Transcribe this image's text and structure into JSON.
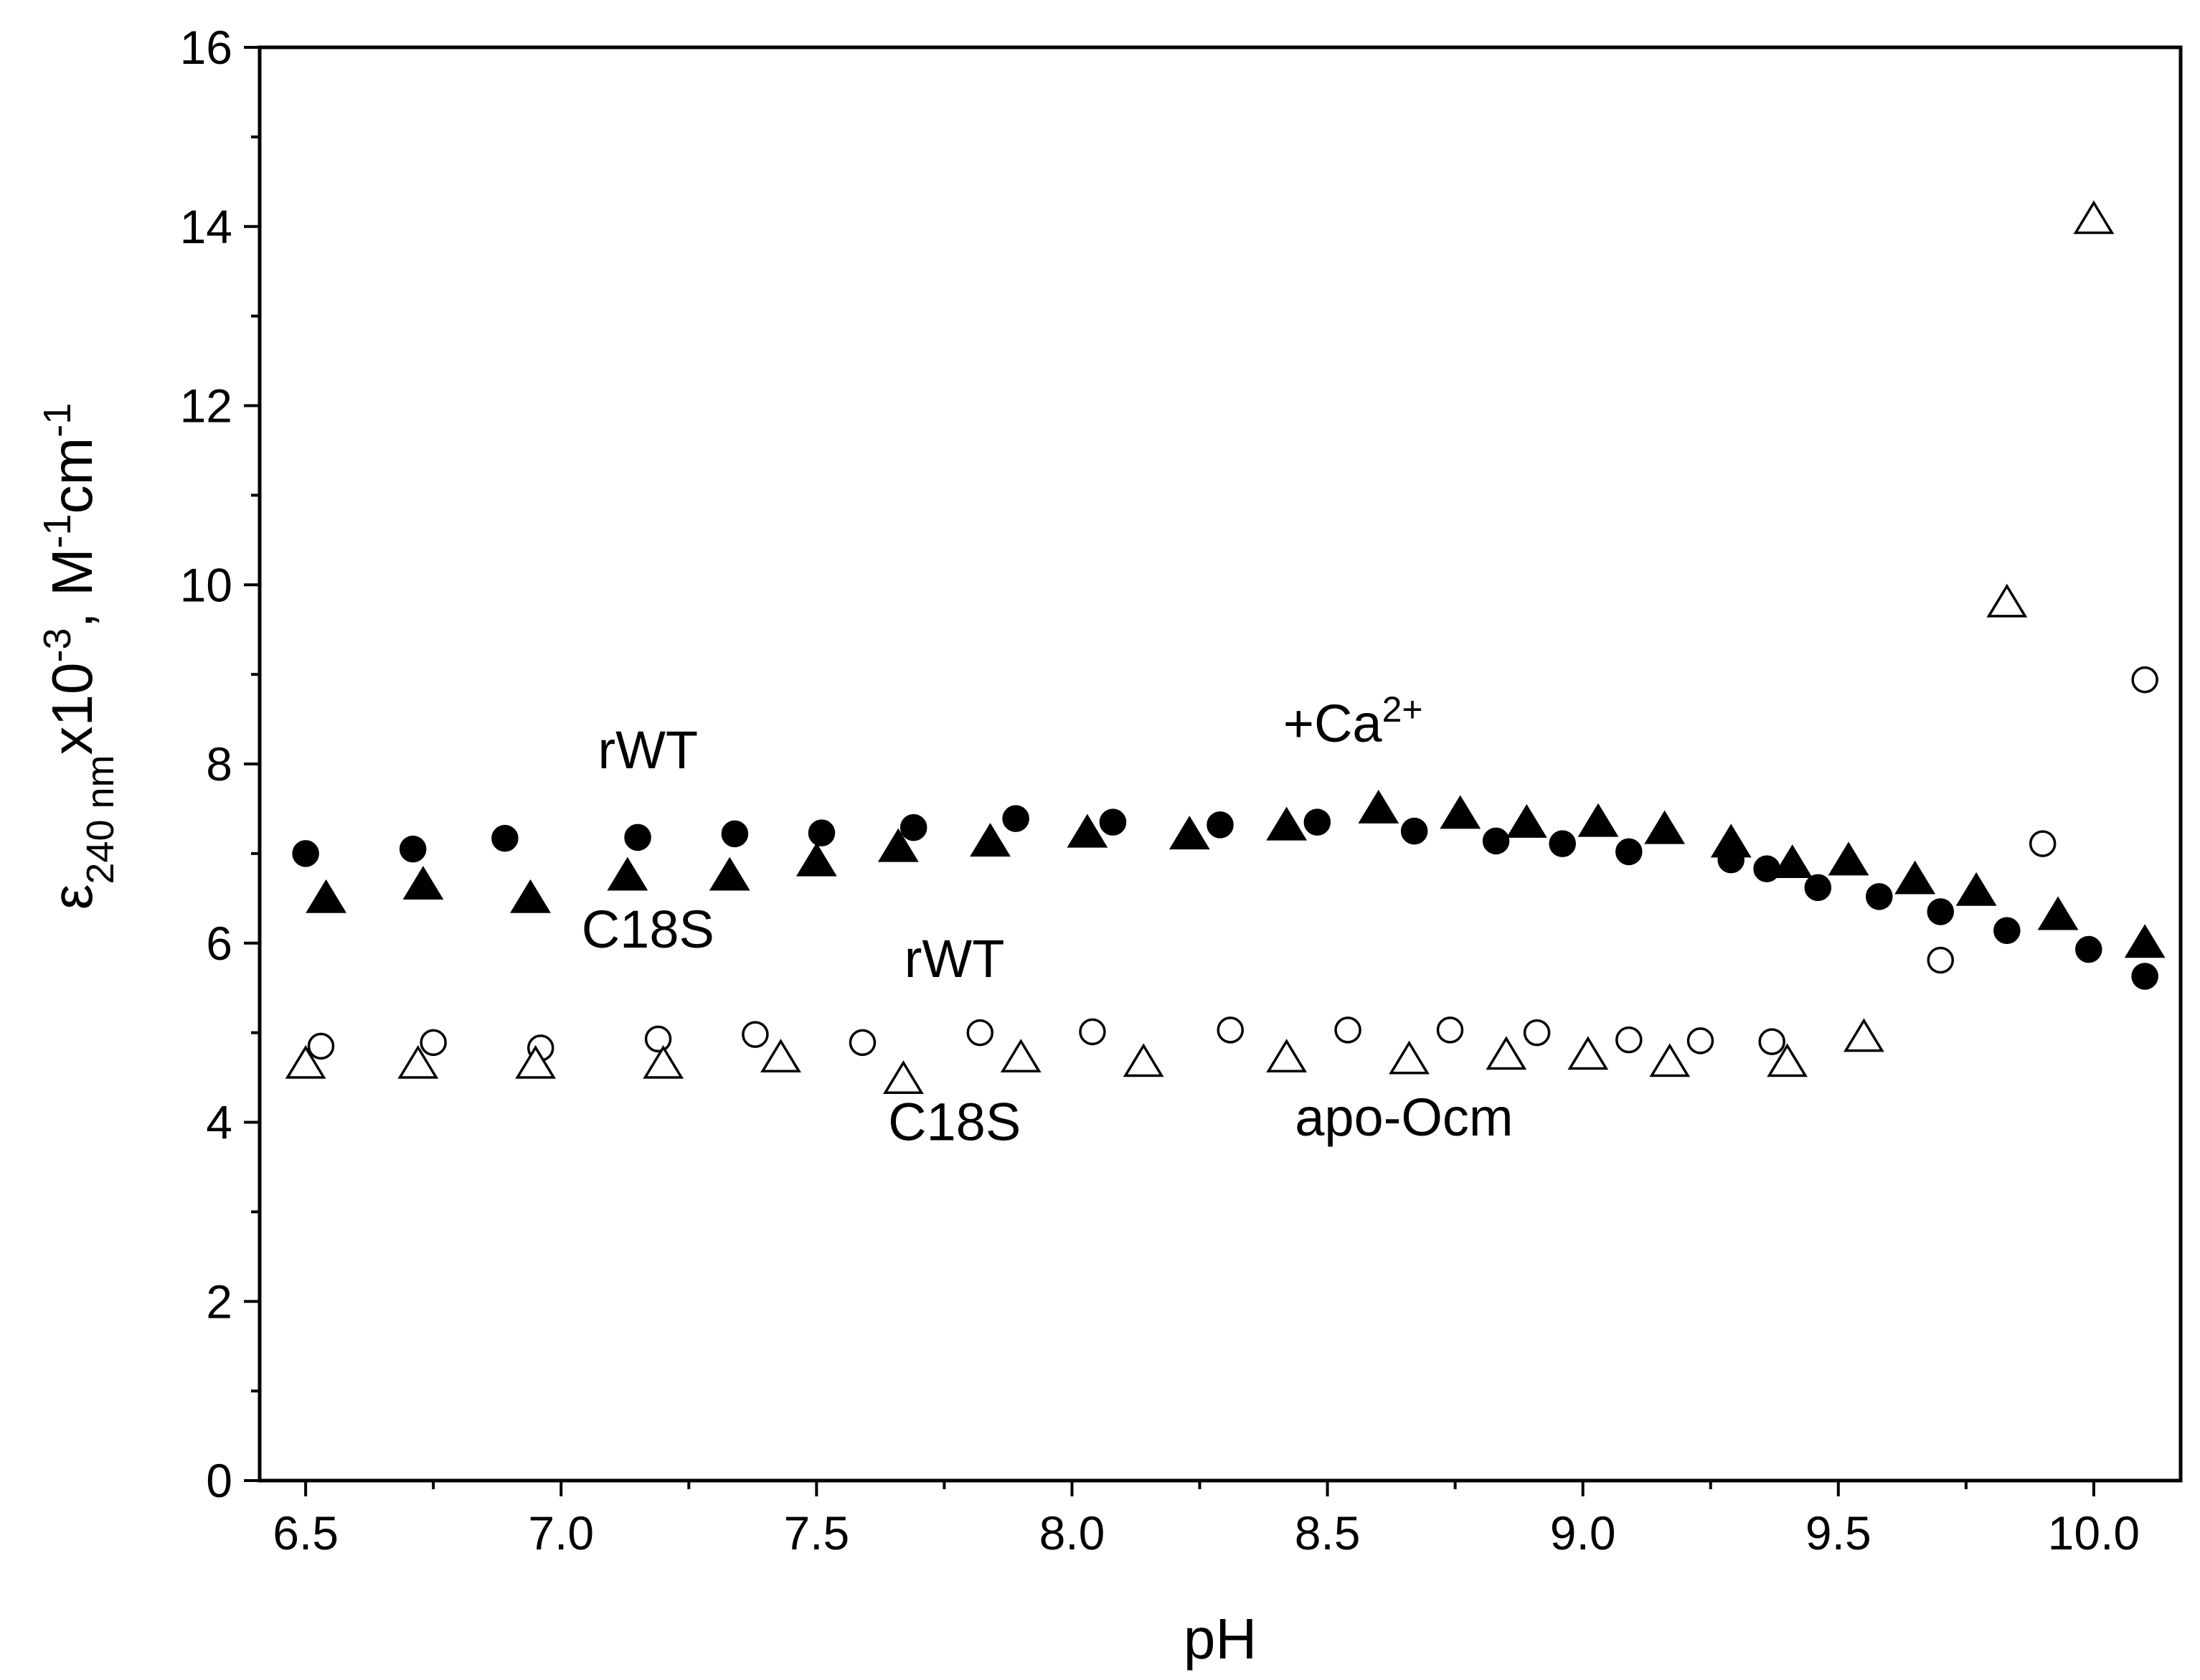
{
  "chart_data": {
    "type": "scatter",
    "xlabel": "pH",
    "ylabel": {
      "main": "ε",
      "subscript": "240 nm",
      "rest": "x10",
      "exp": "-3",
      "sep": ", M",
      "exp2": "-1",
      "unit2": "cm",
      "exp3": "-1"
    },
    "xlim": [
      6.41,
      10.17
    ],
    "ylim": [
      0,
      16
    ],
    "x_ticks": [
      "6.5",
      "7.0",
      "7.5",
      "8.0",
      "8.5",
      "9.0",
      "9.5",
      "10.0"
    ],
    "x_tick_values": [
      6.5,
      7.0,
      7.5,
      8.0,
      8.5,
      9.0,
      9.5,
      10.0
    ],
    "y_ticks": [
      "0",
      "2",
      "4",
      "6",
      "8",
      "10",
      "12",
      "14",
      "16"
    ],
    "y_tick_values": [
      0,
      2,
      4,
      6,
      8,
      10,
      12,
      14,
      16
    ],
    "grid": false,
    "series": [
      {
        "marker": "filled-circle",
        "color": "#000000",
        "points": [
          [
            6.5,
            7.0
          ],
          [
            6.71,
            7.05
          ],
          [
            6.89,
            7.17
          ],
          [
            7.15,
            7.18
          ],
          [
            7.34,
            7.22
          ],
          [
            7.51,
            7.23
          ],
          [
            7.69,
            7.29
          ],
          [
            7.89,
            7.39
          ],
          [
            8.08,
            7.35
          ],
          [
            8.29,
            7.32
          ],
          [
            8.48,
            7.35
          ],
          [
            8.67,
            7.25
          ],
          [
            8.83,
            7.14
          ],
          [
            8.96,
            7.11
          ],
          [
            9.09,
            7.02
          ],
          [
            9.29,
            6.93
          ],
          [
            9.36,
            6.83
          ],
          [
            9.46,
            6.62
          ],
          [
            9.58,
            6.52
          ],
          [
            9.7,
            6.35
          ],
          [
            9.83,
            6.14
          ],
          [
            9.99,
            5.93
          ],
          [
            10.1,
            5.63
          ]
        ]
      },
      {
        "marker": "filled-triangle",
        "color": "#000000",
        "points": [
          [
            6.54,
            6.5
          ],
          [
            6.73,
            6.65
          ],
          [
            6.94,
            6.5
          ],
          [
            7.13,
            6.75
          ],
          [
            7.33,
            6.75
          ],
          [
            7.5,
            6.91
          ],
          [
            7.66,
            7.07
          ],
          [
            7.84,
            7.13
          ],
          [
            8.03,
            7.23
          ],
          [
            8.23,
            7.21
          ],
          [
            8.42,
            7.31
          ],
          [
            8.6,
            7.5
          ],
          [
            8.76,
            7.44
          ],
          [
            8.89,
            7.34
          ],
          [
            9.03,
            7.35
          ],
          [
            9.16,
            7.27
          ],
          [
            9.29,
            7.12
          ],
          [
            9.41,
            6.89
          ],
          [
            9.52,
            6.92
          ],
          [
            9.65,
            6.71
          ],
          [
            9.77,
            6.58
          ],
          [
            9.93,
            6.31
          ],
          [
            10.1,
            6.0
          ]
        ]
      },
      {
        "marker": "open-circle",
        "color": "#000000",
        "points": [
          [
            6.53,
            4.85
          ],
          [
            6.75,
            4.89
          ],
          [
            6.96,
            4.83
          ],
          [
            7.19,
            4.93
          ],
          [
            7.38,
            4.98
          ],
          [
            7.59,
            4.89
          ],
          [
            7.82,
            5.0
          ],
          [
            8.04,
            5.01
          ],
          [
            8.31,
            5.03
          ],
          [
            8.54,
            5.03
          ],
          [
            8.74,
            5.03
          ],
          [
            8.91,
            5.0
          ],
          [
            9.09,
            4.92
          ],
          [
            9.23,
            4.91
          ],
          [
            9.37,
            4.9
          ],
          [
            9.7,
            5.81
          ],
          [
            9.9,
            7.11
          ],
          [
            10.1,
            8.94
          ]
        ]
      },
      {
        "marker": "open-triangle",
        "color": "#000000",
        "points": [
          [
            6.5,
            4.65
          ],
          [
            6.72,
            4.65
          ],
          [
            6.95,
            4.65
          ],
          [
            7.2,
            4.65
          ],
          [
            7.43,
            4.72
          ],
          [
            7.67,
            4.48
          ],
          [
            7.9,
            4.72
          ],
          [
            8.14,
            4.67
          ],
          [
            8.42,
            4.72
          ],
          [
            8.66,
            4.7
          ],
          [
            8.85,
            4.75
          ],
          [
            9.01,
            4.75
          ],
          [
            9.17,
            4.67
          ],
          [
            9.4,
            4.67
          ],
          [
            9.55,
            4.95
          ],
          [
            9.83,
            9.8
          ],
          [
            10.0,
            14.08
          ]
        ]
      }
    ],
    "annotations": [
      {
        "id": "rwt-ca",
        "text": "rWT",
        "x": 7.17,
        "y": 7.95
      },
      {
        "id": "c18s-ca",
        "text": "C18S",
        "x": 7.17,
        "y": 5.95
      },
      {
        "id": "ca",
        "text": "+Ca",
        "sup": "2+",
        "x": 8.55,
        "y": 8.25
      },
      {
        "id": "rwt-apo",
        "text": "rWT",
        "x": 7.77,
        "y": 5.62
      },
      {
        "id": "c18s-apo",
        "text": "C18S",
        "x": 7.77,
        "y": 3.8
      },
      {
        "id": "apo",
        "text": "apo-Ocm",
        "x": 8.65,
        "y": 3.85
      }
    ]
  }
}
